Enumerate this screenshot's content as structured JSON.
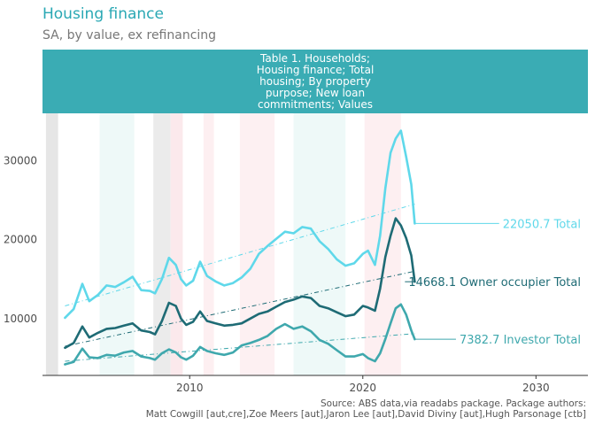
{
  "chart_data": {
    "type": "line",
    "title": "Housing finance",
    "subtitle": "SA, by value, ex refinancing",
    "facet_label": "Table 1. Households; Housing finance; Total housing; By property purpose; New loan commitments; Values",
    "caption_line1": "Source: ABS data,via readabs package. Package authors:",
    "caption_line2": "Matt Cowgill [aut,cre],Zoe Meers [aut],Jaron Lee [aut],David Diviny [aut],Hugh Parsonage [ctb]",
    "xlim": [
      2001.5,
      2033
    ],
    "ylim": [
      2800,
      36000
    ],
    "x_ticks": [
      2010,
      2020,
      2030
    ],
    "y_ticks": [
      10000,
      20000,
      30000
    ],
    "y_tick_labels": [
      "10000",
      "20000",
      "30000"
    ],
    "shaded_periods": [
      {
        "start": 2001.7,
        "end": 2002.4,
        "color": "#e6e6e6"
      },
      {
        "start": 2004.8,
        "end": 2006.8,
        "color": "#eef9f8"
      },
      {
        "start": 2007.9,
        "end": 2008.9,
        "color": "#ebebeb"
      },
      {
        "start": 2008.9,
        "end": 2009.6,
        "color": "#fbe9ec"
      },
      {
        "start": 2010.8,
        "end": 2011.4,
        "color": "#fdeff1"
      },
      {
        "start": 2012.9,
        "end": 2014.9,
        "color": "#fdf0f2"
      },
      {
        "start": 2016.0,
        "end": 2019.0,
        "color": "#eef9f8"
      },
      {
        "start": 2020.1,
        "end": 2022.2,
        "color": "#fdeff1"
      }
    ],
    "series": [
      {
        "name": "Total",
        "color": "#5fd8ea",
        "end_label": "22050.7 Total",
        "x": [
          2002.8,
          2003.3,
          2003.8,
          2004.2,
          2004.7,
          2005.2,
          2005.7,
          2006.2,
          2006.7,
          2007.2,
          2007.7,
          2008.0,
          2008.4,
          2008.8,
          2009.2,
          2009.5,
          2009.8,
          2010.2,
          2010.6,
          2011.0,
          2011.5,
          2012.0,
          2012.5,
          2013.0,
          2013.5,
          2014.0,
          2014.5,
          2015.0,
          2015.5,
          2016.0,
          2016.5,
          2017.0,
          2017.5,
          2018.0,
          2018.5,
          2019.0,
          2019.5,
          2020.0,
          2020.3,
          2020.7,
          2021.0,
          2021.3,
          2021.6,
          2021.9,
          2022.2,
          2022.5,
          2022.8,
          2023.0
        ],
        "values": [
          10100,
          11200,
          14400,
          12200,
          13000,
          14200,
          14000,
          14600,
          15300,
          13600,
          13500,
          13200,
          15000,
          17700,
          16800,
          15000,
          14200,
          14800,
          17200,
          15400,
          14700,
          14200,
          14500,
          15200,
          16300,
          18200,
          19200,
          20100,
          21000,
          20800,
          21600,
          21400,
          19800,
          18800,
          17500,
          16700,
          17000,
          18200,
          18600,
          16800,
          20500,
          26500,
          31000,
          32800,
          33800,
          30500,
          27000,
          22050.7
        ]
      },
      {
        "name": "Owner occupier Total",
        "color": "#1e6b75",
        "end_label": "14668.1 Owner occupier Total",
        "x": [
          2002.8,
          2003.3,
          2003.8,
          2004.2,
          2004.7,
          2005.2,
          2005.7,
          2006.2,
          2006.7,
          2007.2,
          2007.7,
          2008.0,
          2008.4,
          2008.8,
          2009.2,
          2009.5,
          2009.8,
          2010.2,
          2010.6,
          2011.0,
          2011.5,
          2012.0,
          2012.5,
          2013.0,
          2013.5,
          2014.0,
          2014.5,
          2015.0,
          2015.5,
          2016.0,
          2016.5,
          2017.0,
          2017.5,
          2018.0,
          2018.5,
          2019.0,
          2019.5,
          2020.0,
          2020.3,
          2020.7,
          2021.0,
          2021.3,
          2021.6,
          2021.9,
          2022.2,
          2022.5,
          2022.8,
          2023.0
        ],
        "values": [
          6300,
          6900,
          9000,
          7600,
          8200,
          8700,
          8800,
          9100,
          9400,
          8500,
          8300,
          8000,
          9700,
          12000,
          11600,
          10000,
          9200,
          9600,
          10900,
          9700,
          9400,
          9100,
          9200,
          9400,
          10000,
          10600,
          10900,
          11500,
          12100,
          12400,
          12800,
          12600,
          11600,
          11300,
          10800,
          10300,
          10500,
          11600,
          11400,
          11000,
          13800,
          17800,
          20500,
          22700,
          21800,
          20200,
          18000,
          14668.1
        ]
      },
      {
        "name": "Investor Total",
        "color": "#3fa8ad",
        "end_label": "7382.7 Investor Total",
        "x": [
          2002.8,
          2003.3,
          2003.8,
          2004.2,
          2004.7,
          2005.2,
          2005.7,
          2006.2,
          2006.7,
          2007.2,
          2007.7,
          2008.0,
          2008.4,
          2008.8,
          2009.2,
          2009.5,
          2009.8,
          2010.2,
          2010.6,
          2011.0,
          2011.5,
          2012.0,
          2012.5,
          2013.0,
          2013.5,
          2014.0,
          2014.5,
          2015.0,
          2015.5,
          2016.0,
          2016.5,
          2017.0,
          2017.5,
          2018.0,
          2018.5,
          2019.0,
          2019.5,
          2020.0,
          2020.3,
          2020.7,
          2021.0,
          2021.3,
          2021.6,
          2021.9,
          2022.2,
          2022.5,
          2022.8,
          2023.0
        ],
        "values": [
          4200,
          4500,
          6200,
          5100,
          5000,
          5400,
          5300,
          5700,
          5900,
          5200,
          5000,
          4800,
          5600,
          6100,
          5700,
          5100,
          4800,
          5300,
          6400,
          5900,
          5600,
          5400,
          5700,
          6600,
          6900,
          7300,
          7800,
          8700,
          9300,
          8700,
          9000,
          8400,
          7300,
          6800,
          6000,
          5200,
          5200,
          5500,
          5000,
          4600,
          5600,
          7400,
          9400,
          11300,
          11800,
          10500,
          8500,
          7382.7
        ]
      }
    ],
    "trends": [
      {
        "series": "Total",
        "x": [
          2002.8,
          2023.0
        ],
        "values": [
          11600,
          24500
        ],
        "color": "#5fd8ea"
      },
      {
        "series": "Owner occupier Total",
        "x": [
          2002.8,
          2023.0
        ],
        "values": [
          6500,
          16000
        ],
        "color": "#1e6b75"
      },
      {
        "series": "Investor Total",
        "x": [
          2002.8,
          2023.0
        ],
        "values": [
          4600,
          8100
        ],
        "color": "#3fa8ad"
      }
    ]
  }
}
